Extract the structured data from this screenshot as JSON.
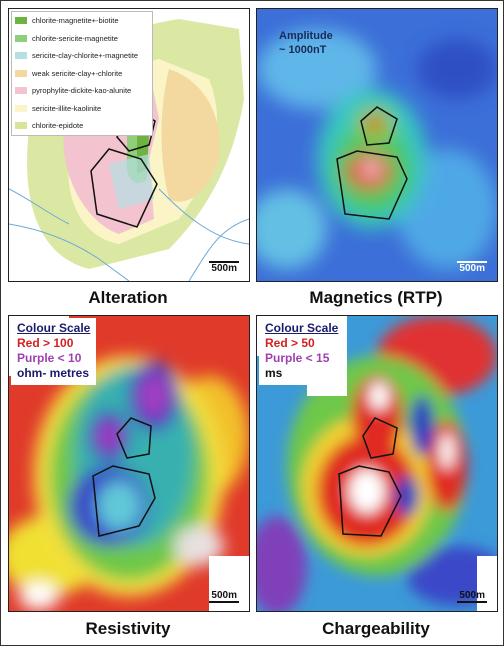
{
  "panels": [
    {
      "caption": "Alteration",
      "scale_bar": "500m",
      "legend": [
        "chlorite-magnetite+-biotite",
        "chlorite-sericite-magnetite",
        "sericite-clay-chlorite+-magnetite",
        "weak sericite-clay+-chlorite",
        "pyrophylite-dickite-kao-alunite",
        "sericite-illite-kaolinite",
        "chlorite-epidote"
      ]
    },
    {
      "caption": "Magnetics (RTP)",
      "scale_bar": "500m",
      "annotation": [
        "Amplitude",
        "~ 1000nT"
      ]
    },
    {
      "caption": "Resistivity",
      "scale_bar": "500m",
      "colour_scale": [
        "Colour Scale",
        "Red > 100",
        "Purple < 10",
        "ohm- metres"
      ]
    },
    {
      "caption": "Chargeability",
      "scale_bar": "500m",
      "colour_scale": [
        "Colour Scale",
        "Red > 50",
        "Purple < 15",
        "ms"
      ]
    }
  ]
}
